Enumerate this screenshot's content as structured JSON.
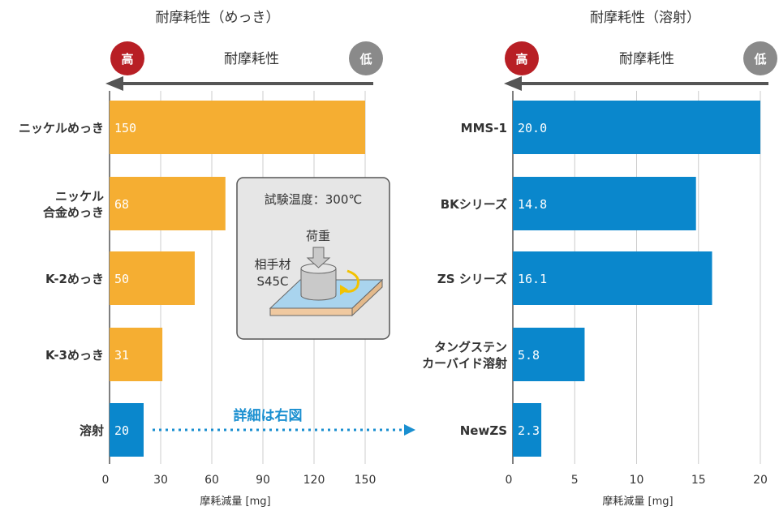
{
  "colors": {
    "plating": "#f5ae32",
    "spray": "#0a87cc",
    "high": "#b81f25",
    "low": "#8a8a8a",
    "arrow": "#555555",
    "grid": "#cccccc",
    "link": "#1a8fd0"
  },
  "legend_arrow": {
    "high_label": "高",
    "low_label": "低",
    "caption": "耐摩耗性"
  },
  "test_box": {
    "condition": "試験温度：300℃",
    "load_label": "荷重",
    "counterpart_label": "相手材",
    "counterpart_material": "S45C"
  },
  "link_text": "詳細は右図",
  "chart_data": [
    {
      "type": "bar",
      "orientation": "horizontal",
      "title": "耐摩耗性（めっき）",
      "xlabel": "摩耗減量 [mg]",
      "xlim": [
        0,
        160
      ],
      "xticks": [
        0,
        30,
        60,
        90,
        120,
        150
      ],
      "categories": [
        {
          "lines": [
            "ニッケルめっき"
          ],
          "value": 150,
          "value_label": "150",
          "color_key": "plating"
        },
        {
          "lines": [
            "ニッケル",
            "合金めっき"
          ],
          "value": 68,
          "value_label": "68",
          "color_key": "plating"
        },
        {
          "lines": [
            "K-2めっき"
          ],
          "value": 50,
          "value_label": "50",
          "color_key": "plating"
        },
        {
          "lines": [
            "K-3めっき"
          ],
          "value": 31,
          "value_label": "31",
          "color_key": "plating"
        },
        {
          "lines": [
            "溶射"
          ],
          "value": 20,
          "value_label": "20",
          "color_key": "spray"
        }
      ]
    },
    {
      "type": "bar",
      "orientation": "horizontal",
      "title": "耐摩耗性（溶射）",
      "xlabel": "摩耗減量 [mg]",
      "xlim": [
        0,
        21
      ],
      "xticks": [
        0,
        5,
        10,
        15,
        20
      ],
      "categories": [
        {
          "lines": [
            "MMS-1"
          ],
          "value": 20.0,
          "value_label": "20.0",
          "color_key": "spray"
        },
        {
          "lines": [
            "BKシリーズ"
          ],
          "value": 14.8,
          "value_label": "14.8",
          "color_key": "spray"
        },
        {
          "lines": [
            "ZS シリーズ"
          ],
          "value": 16.1,
          "value_label": "16.1",
          "color_key": "spray"
        },
        {
          "lines": [
            "タングステン",
            "カーバイド溶射"
          ],
          "value": 5.8,
          "value_label": "5.8",
          "color_key": "spray"
        },
        {
          "lines": [
            "NewZS"
          ],
          "value": 2.3,
          "value_label": "2.3",
          "color_key": "spray"
        }
      ]
    }
  ]
}
